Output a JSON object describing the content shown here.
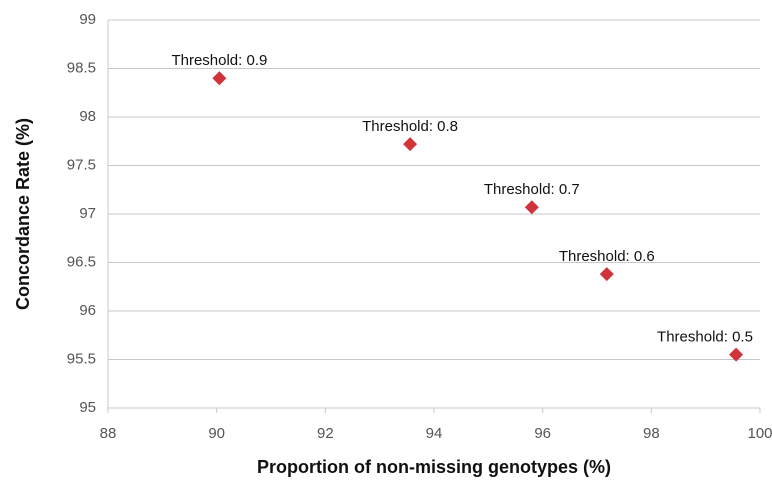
{
  "chart_data": {
    "type": "scatter",
    "xlabel": "Proportion of non-missing genotypes (%)",
    "ylabel": "Concordance Rate (%)",
    "x": [
      90.05,
      93.56,
      95.8,
      97.18,
      99.56
    ],
    "y": [
      98.4,
      97.72,
      97.07,
      96.38,
      95.55
    ],
    "labels": [
      "Threshold: 0.9",
      "Threshold: 0.8",
      "Threshold: 0.7",
      "Threshold: 0.6",
      "Threshold: 0.5"
    ],
    "color": "#d0343a",
    "xlim": [
      88,
      100
    ],
    "xticks": [
      88,
      90,
      92,
      94,
      96,
      98,
      100
    ],
    "ylim": [
      95,
      99
    ],
    "yticks": [
      95,
      95.5,
      96,
      96.5,
      97,
      97.5,
      98,
      98.5,
      99
    ],
    "grid": true
  }
}
